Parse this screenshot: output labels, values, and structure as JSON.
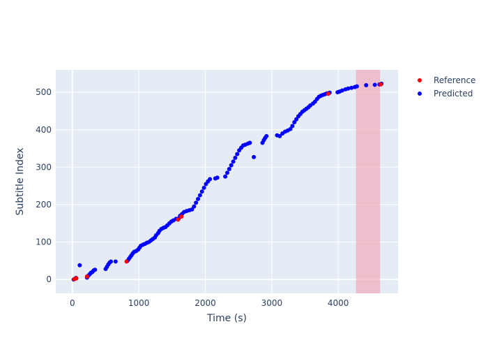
{
  "chart_data": {
    "type": "scatter",
    "xlabel": "Time (s)",
    "ylabel": "Subtitle Index",
    "xlim": [
      -250,
      4900
    ],
    "ylim": [
      -37,
      560
    ],
    "xticks": [
      0,
      1000,
      2000,
      3000,
      4000
    ],
    "yticks": [
      0,
      100,
      200,
      300,
      400,
      500
    ],
    "grid": true,
    "legend_position": "top-right, outside plot",
    "background_color": "#E5ECF6",
    "highlight_region": {
      "x0": 4265,
      "x1": 4630,
      "color": "#F4A6B5"
    },
    "series": [
      {
        "name": "Reference",
        "color": "#FF0000",
        "points": [
          [
            30,
            1
          ],
          [
            60,
            3
          ],
          [
            220,
            8
          ],
          [
            815,
            48
          ],
          [
            1590,
            160
          ],
          [
            1640,
            168
          ],
          [
            3850,
            496
          ],
          [
            4640,
            521
          ]
        ]
      },
      {
        "name": "Predicted",
        "color": "#0000FF",
        "points": [
          [
            20,
            0
          ],
          [
            40,
            2
          ],
          [
            55,
            4
          ],
          [
            110,
            38
          ],
          [
            220,
            5
          ],
          [
            240,
            10
          ],
          [
            260,
            14
          ],
          [
            280,
            18
          ],
          [
            300,
            20
          ],
          [
            320,
            24
          ],
          [
            340,
            26
          ],
          [
            500,
            28
          ],
          [
            520,
            34
          ],
          [
            540,
            40
          ],
          [
            560,
            45
          ],
          [
            580,
            48
          ],
          [
            650,
            48
          ],
          [
            830,
            50
          ],
          [
            850,
            55
          ],
          [
            870,
            60
          ],
          [
            890,
            65
          ],
          [
            910,
            70
          ],
          [
            930,
            74
          ],
          [
            960,
            76
          ],
          [
            990,
            80
          ],
          [
            1010,
            85
          ],
          [
            1030,
            90
          ],
          [
            1060,
            93
          ],
          [
            1090,
            95
          ],
          [
            1120,
            98
          ],
          [
            1150,
            100
          ],
          [
            1180,
            104
          ],
          [
            1210,
            108
          ],
          [
            1240,
            112
          ],
          [
            1260,
            118
          ],
          [
            1290,
            124
          ],
          [
            1310,
            130
          ],
          [
            1340,
            135
          ],
          [
            1370,
            138
          ],
          [
            1400,
            140
          ],
          [
            1430,
            145
          ],
          [
            1460,
            150
          ],
          [
            1490,
            155
          ],
          [
            1520,
            158
          ],
          [
            1560,
            162
          ],
          [
            1600,
            163
          ],
          [
            1620,
            170
          ],
          [
            1650,
            175
          ],
          [
            1680,
            180
          ],
          [
            1720,
            183
          ],
          [
            1760,
            185
          ],
          [
            1800,
            187
          ],
          [
            1830,
            195
          ],
          [
            1860,
            205
          ],
          [
            1890,
            215
          ],
          [
            1920,
            225
          ],
          [
            1950,
            235
          ],
          [
            1980,
            245
          ],
          [
            2010,
            255
          ],
          [
            2040,
            262
          ],
          [
            2070,
            268
          ],
          [
            2150,
            270
          ],
          [
            2180,
            272
          ],
          [
            2300,
            275
          ],
          [
            2330,
            285
          ],
          [
            2360,
            295
          ],
          [
            2390,
            305
          ],
          [
            2420,
            315
          ],
          [
            2450,
            325
          ],
          [
            2480,
            335
          ],
          [
            2510,
            345
          ],
          [
            2540,
            352
          ],
          [
            2570,
            358
          ],
          [
            2600,
            360
          ],
          [
            2640,
            363
          ],
          [
            2670,
            365
          ],
          [
            2730,
            327
          ],
          [
            2860,
            365
          ],
          [
            2880,
            372
          ],
          [
            2900,
            378
          ],
          [
            2920,
            383
          ],
          [
            3080,
            385
          ],
          [
            3120,
            383
          ],
          [
            3160,
            390
          ],
          [
            3200,
            395
          ],
          [
            3240,
            398
          ],
          [
            3280,
            402
          ],
          [
            3310,
            410
          ],
          [
            3340,
            420
          ],
          [
            3370,
            428
          ],
          [
            3400,
            436
          ],
          [
            3430,
            442
          ],
          [
            3460,
            448
          ],
          [
            3490,
            452
          ],
          [
            3520,
            456
          ],
          [
            3550,
            460
          ],
          [
            3580,
            465
          ],
          [
            3620,
            470
          ],
          [
            3650,
            475
          ],
          [
            3680,
            482
          ],
          [
            3710,
            488
          ],
          [
            3740,
            491
          ],
          [
            3770,
            493
          ],
          [
            3800,
            495
          ],
          [
            3830,
            497
          ],
          [
            3870,
            499
          ],
          [
            3990,
            500
          ],
          [
            4020,
            502
          ],
          [
            4060,
            505
          ],
          [
            4110,
            508
          ],
          [
            4150,
            510
          ],
          [
            4200,
            512
          ],
          [
            4250,
            514
          ],
          [
            4280,
            516
          ],
          [
            4420,
            519
          ],
          [
            4550,
            520
          ],
          [
            4620,
            521
          ],
          [
            4650,
            523
          ]
        ]
      }
    ]
  }
}
